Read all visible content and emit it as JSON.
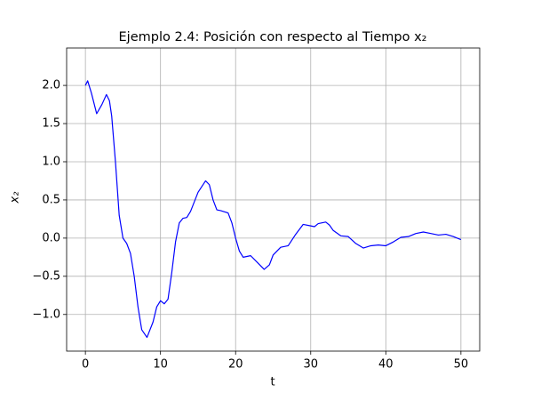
{
  "chart_data": {
    "type": "line",
    "title": "Ejemplo 2.4: Posición con respecto al Tiempo x₂",
    "xlabel": "t",
    "ylabel": "x₂",
    "x": [
      0,
      0.3,
      0.8,
      1.5,
      2.2,
      2.8,
      3.2,
      3.5,
      4,
      4.5,
      5,
      5.5,
      6,
      6.5,
      7,
      7.5,
      8.2,
      9,
      9.5,
      10,
      10.5,
      11,
      11.5,
      12,
      12.5,
      13,
      13.5,
      14,
      15,
      16,
      16.5,
      17,
      17.5,
      18,
      19,
      19.5,
      20,
      20.5,
      21,
      22,
      23,
      23.8,
      24.5,
      25,
      26,
      27,
      28,
      29,
      30,
      30.5,
      31,
      32,
      32.5,
      33,
      34,
      35,
      36,
      37,
      38,
      39,
      40,
      41,
      42,
      43,
      44,
      45,
      46,
      47,
      48,
      49,
      50
    ],
    "series": [
      {
        "name": "x2",
        "color": "#0000ff",
        "values": [
          2.0,
          2.06,
          1.9,
          1.63,
          1.75,
          1.88,
          1.8,
          1.6,
          1.0,
          0.3,
          0.0,
          -0.07,
          -0.2,
          -0.5,
          -0.9,
          -1.2,
          -1.3,
          -1.1,
          -0.9,
          -0.82,
          -0.86,
          -0.8,
          -0.45,
          -0.05,
          0.2,
          0.26,
          0.27,
          0.35,
          0.6,
          0.75,
          0.7,
          0.5,
          0.37,
          0.36,
          0.33,
          0.2,
          0.0,
          -0.17,
          -0.25,
          -0.23,
          -0.33,
          -0.41,
          -0.35,
          -0.22,
          -0.12,
          -0.1,
          0.05,
          0.18,
          0.16,
          0.15,
          0.19,
          0.21,
          0.17,
          0.1,
          0.03,
          0.02,
          -0.07,
          -0.13,
          -0.1,
          -0.09,
          -0.1,
          -0.05,
          0.01,
          0.02,
          0.06,
          0.08,
          0.06,
          0.04,
          0.05,
          0.02,
          -0.02
        ]
      }
    ],
    "xlim": [
      -2.5,
      52.5
    ],
    "xticks": [
      0,
      10,
      20,
      30,
      40,
      50
    ],
    "ylim": [
      -1.48,
      2.49
    ],
    "yticks": [
      {
        "value": -1.0,
        "label": "−1.0"
      },
      {
        "value": -0.5,
        "label": "−0.5"
      },
      {
        "value": 0,
        "label": "0.0"
      },
      {
        "value": 0.5,
        "label": "0.5"
      },
      {
        "value": 1.0,
        "label": "1.0"
      },
      {
        "value": 1.5,
        "label": "1.5"
      },
      {
        "value": 2.0,
        "label": "2.0"
      }
    ],
    "grid": true
  }
}
